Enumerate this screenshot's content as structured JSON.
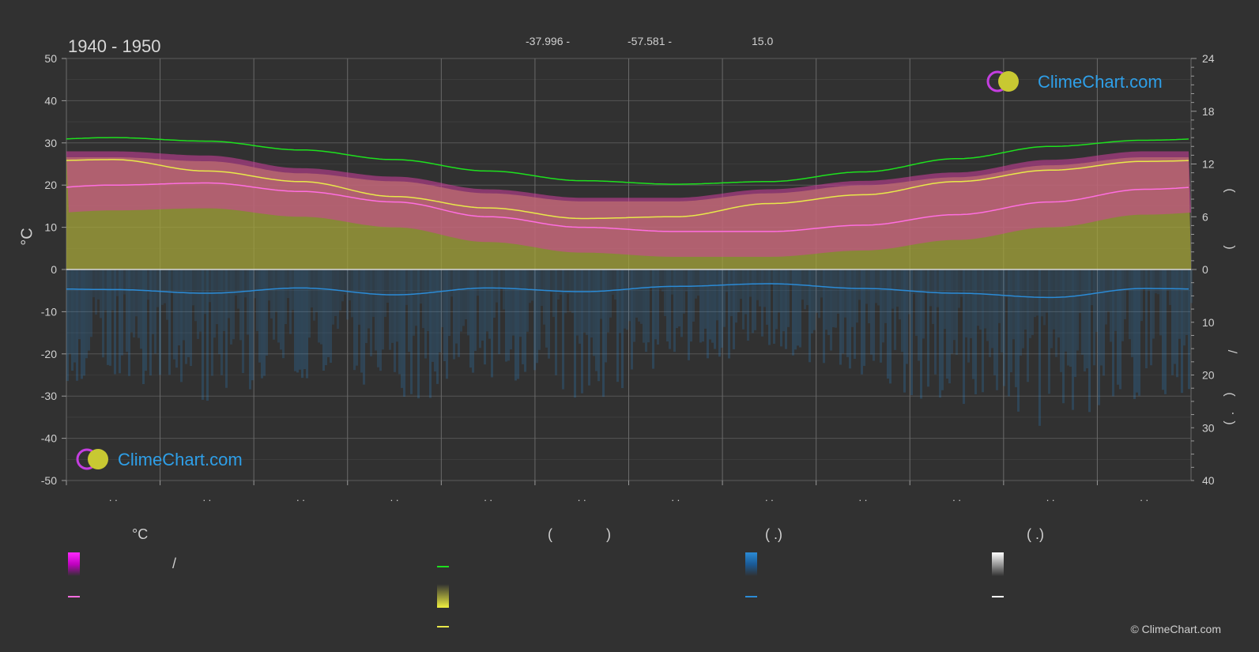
{
  "header": {
    "title": "1940 - 1950",
    "lat": "-37.996 -",
    "lon": "-57.581 -",
    "elevation": "15.0"
  },
  "brand": {
    "logo_text": "ClimeChart.com",
    "copyright": "© ClimeChart.com"
  },
  "axes": {
    "left_unit": "°C",
    "month_label": ". .",
    "right_upper_paren_open": "(",
    "right_upper_paren_close": ")",
    "right_lower_slash": "/",
    "right_lower_paren_open": "(",
    "right_lower_dot": "·",
    "right_lower_paren_close": ")"
  },
  "legend": {
    "col1_header": "°C",
    "col1_slash": "/",
    "col2_paren_open": "(",
    "col2_paren_close": ")",
    "col3_header": "(   .)",
    "col4_header": "(   .)"
  },
  "colors": {
    "background": "#313131",
    "daylight": "#1ee01e",
    "sunshine": "#e8e84a",
    "temperature": "#ff6ee0",
    "temp_band": "#d1409e",
    "sun_band": "#a6a63a",
    "rain": "#2b8bd6",
    "snow": "#ffffff",
    "grid": "#5a5a5a"
  },
  "chart_data": {
    "type": "area",
    "title": "1940 - 1950",
    "ylabel": "°C",
    "ylim": [
      -50,
      50
    ],
    "yticks": [
      50,
      40,
      30,
      20,
      10,
      0,
      -10,
      -20,
      -30,
      -40,
      -50
    ],
    "y2_upper": {
      "ticks": [
        24,
        18,
        12,
        6,
        0
      ],
      "range": [
        0,
        24
      ]
    },
    "y2_lower": {
      "ticks": [
        0,
        10,
        20,
        30,
        40
      ],
      "range": [
        0,
        40
      ]
    },
    "months": 12,
    "daylight_hours": [
      15.0,
      14.6,
      13.6,
      12.5,
      11.2,
      10.1,
      9.7,
      10.0,
      11.1,
      12.6,
      14.0,
      14.7
    ],
    "sunshine_hours": [
      12.5,
      11.2,
      10.0,
      8.3,
      7.0,
      5.8,
      6.0,
      7.5,
      8.5,
      10.0,
      11.3,
      12.3
    ],
    "avg_temp": [
      20.0,
      20.5,
      18.5,
      16.0,
      12.5,
      10.0,
      9.0,
      9.0,
      10.5,
      13.0,
      16.0,
      19.0
    ],
    "temp_band_top": [
      28,
      27,
      24,
      22,
      19,
      17,
      17,
      19,
      21,
      23,
      26,
      28
    ],
    "rain_daily_mm": [
      3.8,
      4.5,
      3.5,
      4.8,
      3.5,
      4.2,
      3.2,
      2.7,
      3.6,
      4.5,
      5.3,
      3.6
    ],
    "rain_intensity_mm": [
      25,
      30,
      25,
      30,
      25,
      30,
      22,
      20,
      25,
      32,
      35,
      30
    ]
  }
}
